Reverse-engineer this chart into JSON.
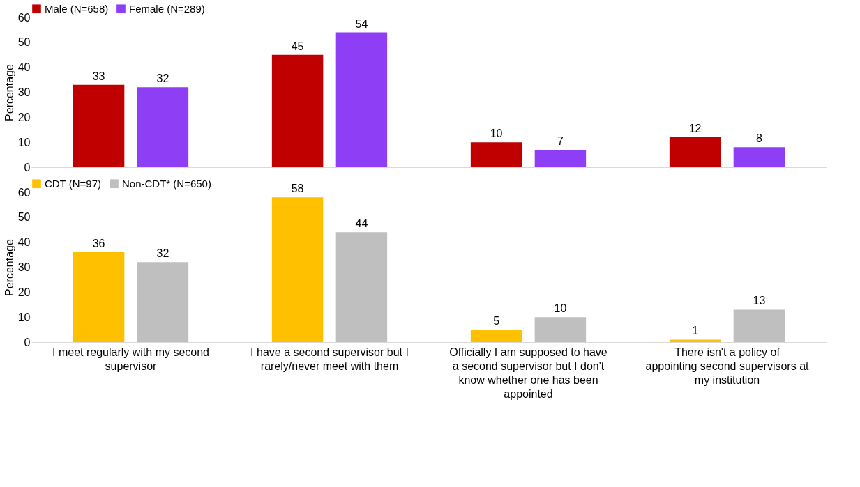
{
  "chart_data": [
    {
      "type": "bar",
      "categories": [
        "I meet regularly with my second supervisor",
        "I have a second supervisor but I rarely/never meet with them",
        "Officially I am supposed to have a second supervisor but I don't know whether one has been appointed",
        "There isn't a policy of appointing second supervisors at my institution"
      ],
      "ylabel": "Percentage",
      "ylim": [
        0,
        60
      ],
      "yticks": [
        0,
        10,
        20,
        30,
        40,
        50,
        60
      ],
      "tick_labels": "y",
      "legend": "top",
      "grid": false,
      "data_labels": true,
      "series": [
        {
          "name": "Male (N=658)",
          "color": "#c00000",
          "values": [
            33,
            45,
            10,
            12
          ]
        },
        {
          "name": "Female (N=289)",
          "color": "#8e3ff5",
          "values": [
            32,
            54,
            7,
            8
          ]
        }
      ]
    },
    {
      "type": "bar",
      "categories": [
        "I meet regularly with my second supervisor",
        "I have a second supervisor but I rarely/never meet with them",
        "Officially I am supposed to have a second supervisor but I don't know whether one has been appointed",
        "There isn't a policy of appointing second supervisors at my institution"
      ],
      "ylabel": "Percentage",
      "ylim": [
        0,
        60
      ],
      "yticks": [
        0,
        10,
        20,
        30,
        40,
        50,
        60
      ],
      "legend": "top",
      "grid": false,
      "data_labels": true,
      "series": [
        {
          "name": "CDT (N=97)",
          "color": "#ffc000",
          "values": [
            36,
            58,
            5,
            1
          ]
        },
        {
          "name": "Non-CDT* (N=650)",
          "color": "#bfbfbf",
          "values": [
            32,
            44,
            10,
            13
          ]
        }
      ]
    }
  ]
}
